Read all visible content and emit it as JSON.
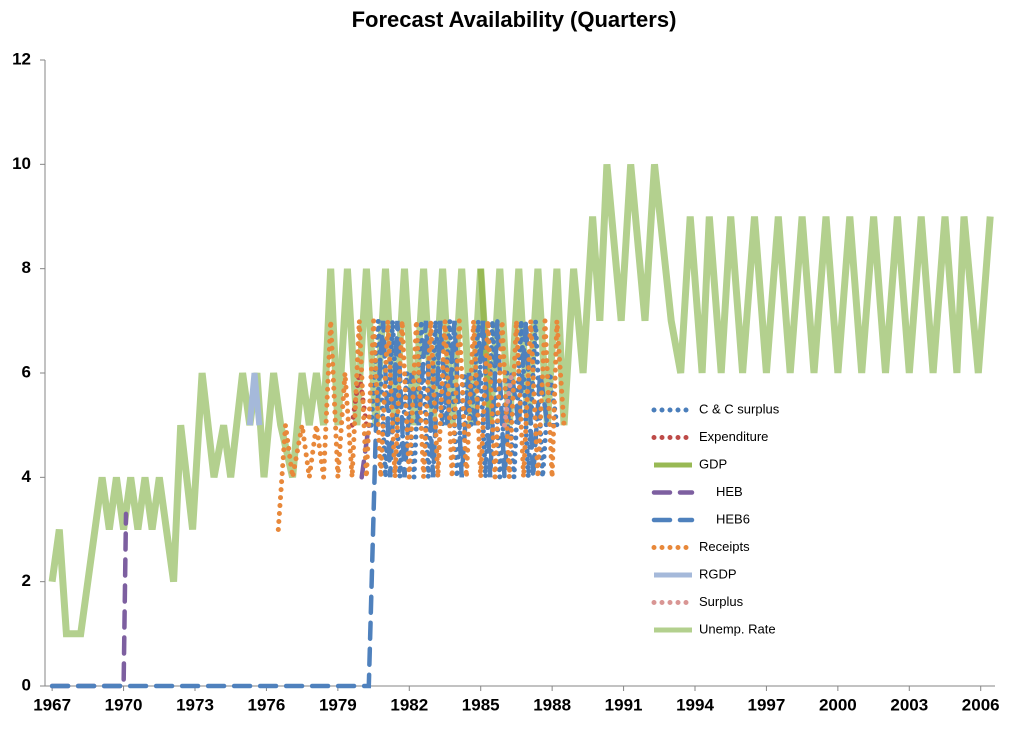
{
  "chart_data": {
    "type": "line",
    "title": "Forecast Availability (Quarters)",
    "xlim": [
      1966.7,
      2006.6
    ],
    "xticks": [
      1967,
      1970,
      1973,
      1976,
      1979,
      1982,
      1985,
      1988,
      1991,
      1994,
      1997,
      2000,
      2003,
      2006
    ],
    "ylim": [
      0,
      12
    ],
    "yticks": [
      0,
      2,
      4,
      6,
      8,
      10,
      12
    ],
    "grid": false,
    "legend": "right",
    "series": [
      {
        "name": "Unemp. Rate",
        "color": "#b3d08e",
        "dash": "solid",
        "x": [
          1967.0,
          1967.3,
          1967.6,
          1968.2,
          1969.1,
          1969.4,
          1969.7,
          1970.0,
          1970.3,
          1970.6,
          1970.9,
          1971.2,
          1971.5,
          1971.8,
          1972.1,
          1972.4,
          1972.9,
          1973.3,
          1973.8,
          1974.2,
          1974.5,
          1975.0,
          1975.3,
          1975.6,
          1975.9,
          1976.3,
          1976.6,
          1977.1,
          1977.5,
          1977.8,
          1978.1,
          1978.4,
          1978.7,
          1979.0,
          1979.4,
          1979.8,
          1980.2,
          1980.6,
          1981.0,
          1981.4,
          1981.8,
          1982.2,
          1982.6,
          1983.0,
          1983.4,
          1983.8,
          1984.2,
          1984.6,
          1985.0,
          1985.4,
          1985.8,
          1986.2,
          1986.6,
          1987.0,
          1987.4,
          1987.8,
          1988.2,
          1988.5,
          1988.9,
          1989.3,
          1989.7,
          1990.0,
          1990.3,
          1990.9,
          1991.3,
          1991.9,
          1992.3,
          1993.0,
          1993.4,
          1993.8,
          1994.3,
          1994.6,
          1995.1,
          1995.5,
          1996.0,
          1996.5,
          1997.0,
          1997.5,
          1998.0,
          1998.5,
          1999.0,
          1999.5,
          2000.0,
          2000.5,
          2001.0,
          2001.5,
          2002.0,
          2002.5,
          2003.0,
          2003.5,
          2004.0,
          2004.5,
          2005.0,
          2005.3,
          2005.9,
          2006.4
        ],
        "values": [
          2,
          3,
          1,
          1,
          4,
          3,
          4,
          3,
          4,
          3,
          4,
          3,
          4,
          3,
          2,
          5,
          3,
          6,
          4,
          5,
          4,
          6,
          5,
          6,
          4,
          6,
          5,
          4,
          6,
          5,
          6,
          5,
          8,
          5,
          8,
          5,
          8,
          5,
          8,
          5,
          8,
          5,
          8,
          5,
          8,
          5,
          8,
          5,
          8,
          5,
          8,
          5,
          8,
          5,
          8,
          5,
          8,
          5,
          8,
          6,
          9,
          7,
          10,
          7,
          10,
          7,
          10,
          7,
          6,
          9,
          6,
          9,
          6,
          9,
          6,
          9,
          6,
          9,
          6,
          9,
          6,
          9,
          6,
          9,
          6,
          9,
          6,
          9,
          6,
          9,
          6,
          9,
          6,
          9,
          6,
          9
        ]
      },
      {
        "name": "C & C surplus",
        "color": "#4a7ebb",
        "dash": "dot",
        "x": [
          1980.4,
          1980.7,
          1981.0,
          1981.3,
          1981.6,
          1981.9,
          1982.2,
          1982.5,
          1982.8,
          1983.1,
          1983.4,
          1983.7,
          1984.0,
          1984.3,
          1984.6,
          1984.9,
          1985.2,
          1985.5,
          1985.8,
          1986.1,
          1986.4,
          1986.7,
          1987.0,
          1987.3,
          1987.6,
          1987.9,
          1988.2
        ],
        "values": [
          5,
          7,
          4,
          7,
          4,
          6,
          4,
          7,
          4,
          7,
          5,
          7,
          4,
          6,
          5,
          7,
          4,
          7,
          4,
          6,
          4,
          7,
          4,
          7,
          4,
          6,
          5
        ]
      },
      {
        "name": "Expenditure",
        "color": "#be4b48",
        "dash": "dot",
        "x": [
          1979.6,
          1979.9,
          1980.2
        ],
        "values": [
          5,
          6,
          5
        ]
      },
      {
        "name": "GDP",
        "color": "#98b954",
        "dash": "solid",
        "x": [
          1985.0,
          1985.4
        ],
        "values": [
          8,
          5
        ]
      },
      {
        "name": "HEB",
        "color": "#7d5fa0",
        "dash": "dash",
        "x": [
          1967.0,
          1969.9,
          1970.0,
          1970.1,
          1979.8,
          1980.0,
          1980.3
        ],
        "values": [
          0,
          0,
          0,
          3.3,
          null,
          4,
          5
        ]
      },
      {
        "name": "HEB6",
        "color": "#4f81bd",
        "dash": "dash",
        "x": [
          1967.0,
          1980.2,
          1980.3,
          1980.6,
          1980.9,
          1981.2,
          1981.5,
          1981.8,
          1982.1,
          1982.4,
          1982.7,
          1983.0,
          1983.3,
          1983.6,
          1983.9,
          1984.2,
          1984.5,
          1984.8,
          1985.1,
          1985.4,
          1985.7,
          1986.0,
          1986.3,
          1986.6,
          1986.9,
          1987.2,
          1987.5,
          1987.8,
          1988.1
        ],
        "values": [
          0,
          0,
          0,
          5,
          7,
          4,
          7,
          4,
          6,
          5,
          7,
          4,
          7,
          5,
          7,
          4,
          6,
          5,
          7,
          4,
          7,
          4,
          6,
          5,
          7,
          4,
          6,
          5,
          5
        ]
      },
      {
        "name": "Receipts",
        "color": "#e8883a",
        "dash": "dot",
        "x": [
          1976.5,
          1976.8,
          1977.1,
          1977.5,
          1977.8,
          1978.1,
          1978.4,
          1978.7,
          1979.0,
          1979.3,
          1979.6,
          1979.9,
          1980.2,
          1980.5,
          1980.8,
          1981.1,
          1981.4,
          1981.7,
          1982.0,
          1982.3,
          1982.6,
          1982.9,
          1983.2,
          1983.5,
          1983.8,
          1984.1,
          1984.4,
          1984.7,
          1985.0,
          1985.3,
          1985.6,
          1985.9,
          1986.2,
          1986.5,
          1986.8,
          1987.1,
          1987.4,
          1987.7,
          1988.0,
          1988.2,
          1988.5
        ],
        "values": [
          3,
          5,
          4,
          5,
          4,
          5,
          4,
          7,
          4,
          6,
          4,
          7,
          4,
          7,
          4,
          7,
          4,
          7,
          4,
          7,
          4,
          7,
          4,
          7,
          4,
          7,
          4,
          7,
          4,
          7,
          4,
          7,
          4,
          7,
          4,
          7,
          4,
          7,
          4,
          7,
          5
        ]
      },
      {
        "name": "RGDP",
        "color": "#a5b9da",
        "dash": "solid",
        "x": [
          1975.3,
          1975.5,
          1975.7
        ],
        "values": [
          5,
          6,
          5
        ]
      },
      {
        "name": "Surplus",
        "color": "#d99694",
        "dash": "dot",
        "x": [
          1986.0,
          1986.3
        ],
        "values": [
          5,
          6
        ]
      }
    ]
  }
}
